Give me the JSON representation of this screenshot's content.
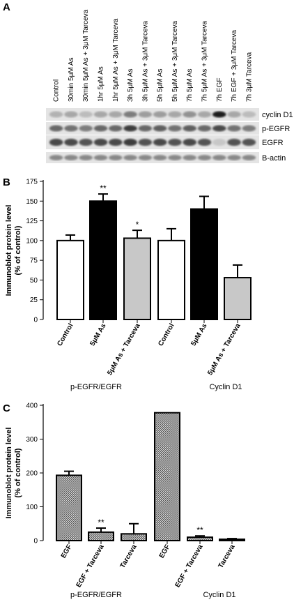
{
  "panels": {
    "a": "A",
    "b": "B",
    "c": "C"
  },
  "blot": {
    "lanes": [
      "Control",
      "30min 5μM As",
      "30min 5μM As + 3μM Tarceva",
      "1hr 5μM As",
      "1hr 5μM As + 3μM Tarceva",
      "3h 5μM As",
      "3h 5μM As + 3μM Tarceva",
      "5h 5μM As",
      "5h 5μM As + 3μM Tarceva",
      "7h 5μM As",
      "7h 5μM As + 3μM Tarceva",
      "7h EGF",
      "7h EGF + 3μM Tarceva",
      "7h 3μM Tarceva"
    ],
    "rows": [
      "cyclin D1",
      "p-EGFR",
      "EGFR",
      "B-actin"
    ],
    "intensity": [
      [
        0.25,
        0.3,
        0.2,
        0.3,
        0.3,
        0.5,
        0.35,
        0.35,
        0.3,
        0.4,
        0.3,
        0.95,
        0.3,
        0.2
      ],
      [
        0.6,
        0.55,
        0.5,
        0.6,
        0.6,
        0.8,
        0.6,
        0.65,
        0.55,
        0.65,
        0.6,
        0.75,
        0.55,
        0.5
      ],
      [
        0.75,
        0.75,
        0.7,
        0.75,
        0.75,
        0.8,
        0.7,
        0.75,
        0.7,
        0.75,
        0.7,
        0.15,
        0.7,
        0.7
      ],
      [
        0.45,
        0.45,
        0.45,
        0.45,
        0.45,
        0.45,
        0.45,
        0.45,
        0.45,
        0.45,
        0.45,
        0.45,
        0.45,
        0.45
      ]
    ]
  },
  "chart_data": [
    {
      "type": "bar",
      "categories": [
        "Control",
        "5μM As",
        "5μM As + Tarceva",
        "Control",
        "5μM As",
        "5μM As + Tarceva"
      ],
      "values": [
        100,
        150,
        103,
        100,
        140,
        53
      ],
      "errors": [
        7,
        9,
        10,
        15,
        16,
        16
      ],
      "fills": [
        "white",
        "black",
        "gray",
        "white",
        "black",
        "gray"
      ],
      "significance": [
        "",
        "**",
        "*",
        "",
        "",
        ""
      ],
      "groups": [
        "p-EGFR/EGFR",
        "Cyclin D1"
      ],
      "ylabel": [
        "Immunoblot protein level",
        "(% of control)"
      ],
      "ylim": [
        0,
        175
      ],
      "yticks": [
        0,
        25,
        50,
        75,
        100,
        125,
        150,
        175
      ]
    },
    {
      "type": "bar",
      "categories": [
        "EGF",
        "EGF + Tarceva",
        "Tarceva",
        "EGF",
        "EGF + Tarceva",
        "Tarceva"
      ],
      "values": [
        193,
        25,
        20,
        378,
        10,
        4
      ],
      "errors": [
        12,
        12,
        30,
        0,
        4,
        2
      ],
      "fills": [
        "hatch",
        "hatch",
        "hatch",
        "hatch",
        "hatch",
        "hatch"
      ],
      "significance": [
        "",
        "**",
        "",
        "",
        "**",
        ""
      ],
      "groups": [
        "p-EGFR/EGFR",
        "Cyclin D1"
      ],
      "ylabel": [
        "Immunoblot protein level",
        "(% of control)"
      ],
      "ylim": [
        0,
        400
      ],
      "yticks": [
        0,
        100,
        200,
        300,
        400
      ]
    }
  ]
}
